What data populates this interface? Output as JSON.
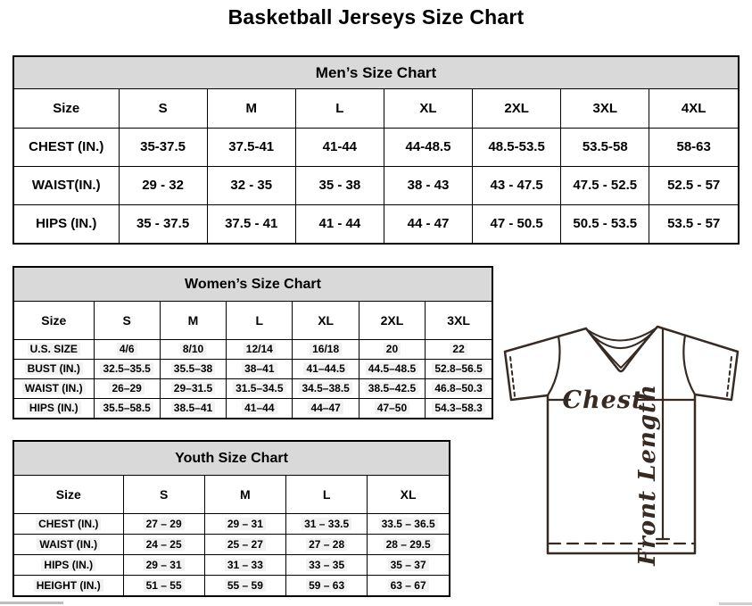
{
  "page_title": "Basketball Jerseys Size Chart",
  "tables": {
    "men": {
      "title": "Men’s Size Chart",
      "columns": [
        "Size",
        "S",
        "M",
        "L",
        "XL",
        "2XL",
        "3XL",
        "4XL"
      ],
      "rows": [
        {
          "label": "CHEST (IN.)",
          "values": [
            "35-37.5",
            "37.5-41",
            "41-44",
            "44-48.5",
            "48.5-53.5",
            "53.5-58",
            "58-63"
          ]
        },
        {
          "label": "WAIST(IN.)",
          "values": [
            "29 - 32",
            "32 - 35",
            "35 - 38",
            "38 - 43",
            "43 - 47.5",
            "47.5 - 52.5",
            "52.5 - 57"
          ]
        },
        {
          "label": "HIPS (IN.)",
          "values": [
            "35 - 37.5",
            "37.5 - 41",
            "41 - 44",
            "44 - 47",
            "47 - 50.5",
            "50.5 - 53.5",
            "53.5 - 57"
          ]
        }
      ]
    },
    "women": {
      "title": "Women’s Size Chart",
      "columns": [
        "Size",
        "S",
        "M",
        "L",
        "XL",
        "2XL",
        "3XL"
      ],
      "rows": [
        {
          "label": "U.S. SIZE",
          "values": [
            "4/6",
            "8/10",
            "12/14",
            "16/18",
            "20",
            "22"
          ]
        },
        {
          "label": "BUST (IN.)",
          "values": [
            "32.5–35.5",
            "35.5–38",
            "38–41",
            "41–44.5",
            "44.5–48.5",
            "52.8–56.5"
          ]
        },
        {
          "label": "WAIST (IN.)",
          "values": [
            "26–29",
            "29–31.5",
            "31.5–34.5",
            "34.5–38.5",
            "38.5–42.5",
            "46.8–50.3"
          ]
        },
        {
          "label": "HIPS (IN.)",
          "values": [
            "35.5–58.5",
            "38.5–41",
            "41–44",
            "44–47",
            "47–50",
            "54.3–58.3"
          ]
        }
      ]
    },
    "youth": {
      "title": "Youth Size Chart",
      "columns": [
        "Size",
        "S",
        "M",
        "L",
        "XL"
      ],
      "rows": [
        {
          "label": "CHEST (IN.)",
          "values": [
            "27 – 29",
            "29 – 31",
            "31 – 33.5",
            "33.5 – 36.5"
          ]
        },
        {
          "label": "WAIST (IN.)",
          "values": [
            "24 – 25",
            "25 – 27",
            "27 – 28",
            "28 – 29.5"
          ]
        },
        {
          "label": "HIPS (IN.)",
          "values": [
            "29 – 31",
            "31 – 33",
            "33 – 35",
            "35 – 37"
          ]
        },
        {
          "label": "HEIGHT (IN.)",
          "values": [
            "51 – 55",
            "55 – 59",
            "59 – 63",
            "63 – 67"
          ]
        }
      ]
    }
  },
  "diagram": {
    "chest_label": "Chest",
    "front_length_label": "Front Length"
  },
  "colors": {
    "section_header_bg": "#d9d9d9",
    "table_border": "#000000",
    "diagram_ink": "#362a22",
    "scrollbar_fragment": "#c0c0c0"
  }
}
